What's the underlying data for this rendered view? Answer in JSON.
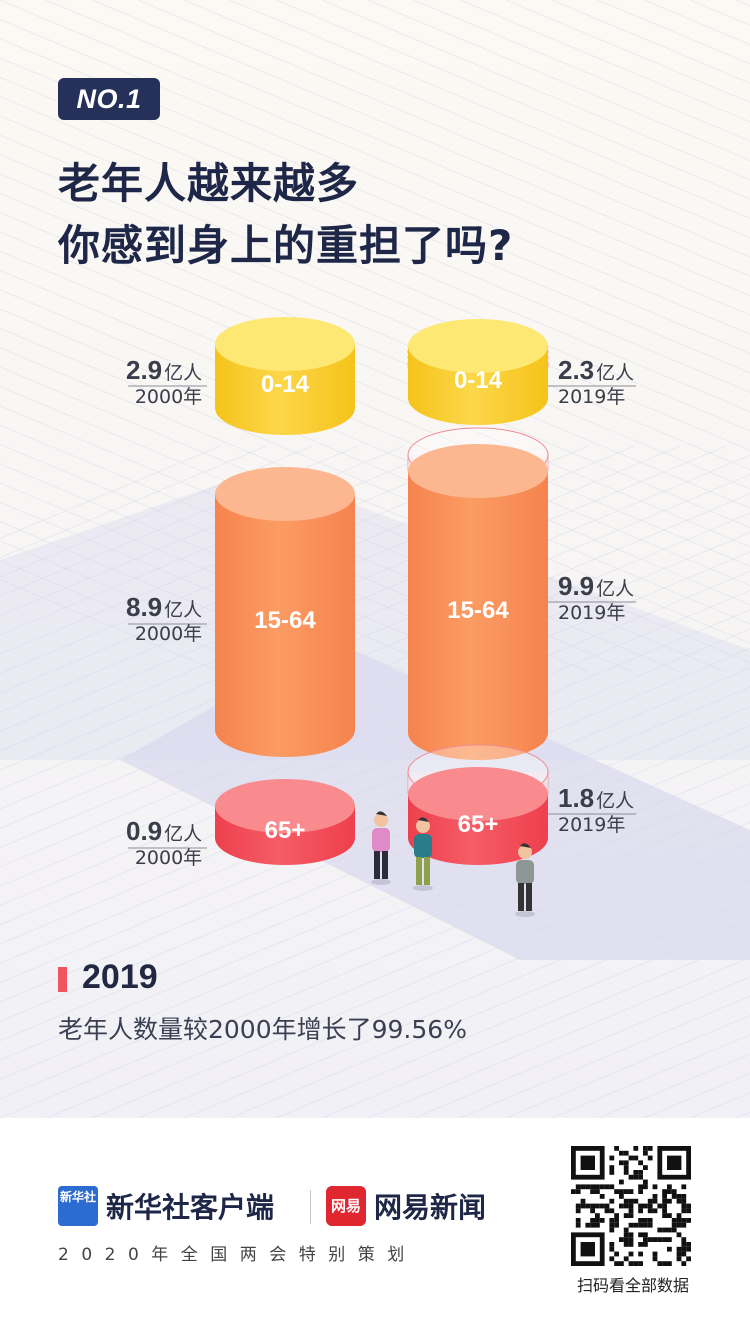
{
  "badge": "NO.1",
  "title_line1": "老年人越来越多",
  "title_line2": "你感到身上的重担了吗?",
  "chart_data": {
    "type": "bar",
    "unit": "亿人",
    "categories": [
      "0-14",
      "15-64",
      "65+"
    ],
    "series": [
      {
        "name": "2000年",
        "values": [
          2.9,
          8.9,
          0.9
        ]
      },
      {
        "name": "2019年",
        "values": [
          2.3,
          9.9,
          1.8
        ]
      }
    ]
  },
  "labels": {
    "left": [
      {
        "value": "2.9",
        "unit": "亿人",
        "year": "2000年"
      },
      {
        "value": "8.9",
        "unit": "亿人",
        "year": "2000年"
      },
      {
        "value": "0.9",
        "unit": "亿人",
        "year": "2000年"
      }
    ],
    "right": [
      {
        "value": "2.3",
        "unit": "亿人",
        "year": "2019年"
      },
      {
        "value": "9.9",
        "unit": "亿人",
        "year": "2019年"
      },
      {
        "value": "1.8",
        "unit": "亿人",
        "year": "2019年"
      }
    ]
  },
  "summary": {
    "year": "2019",
    "note": "老年人数量较2000年增长了99.56%"
  },
  "colors": {
    "young": "#fcd74a",
    "working": "#fb9c63",
    "elderly": "#f55d66",
    "navy": "#26315a"
  },
  "footer": {
    "logo1_text": "新华社",
    "brand1": "新华社客户端",
    "logo2_text": "网易",
    "brand2": "网易新闻",
    "subtitle": "2020年全国两会特别策划",
    "qr_caption": "扫码看全部数据"
  }
}
